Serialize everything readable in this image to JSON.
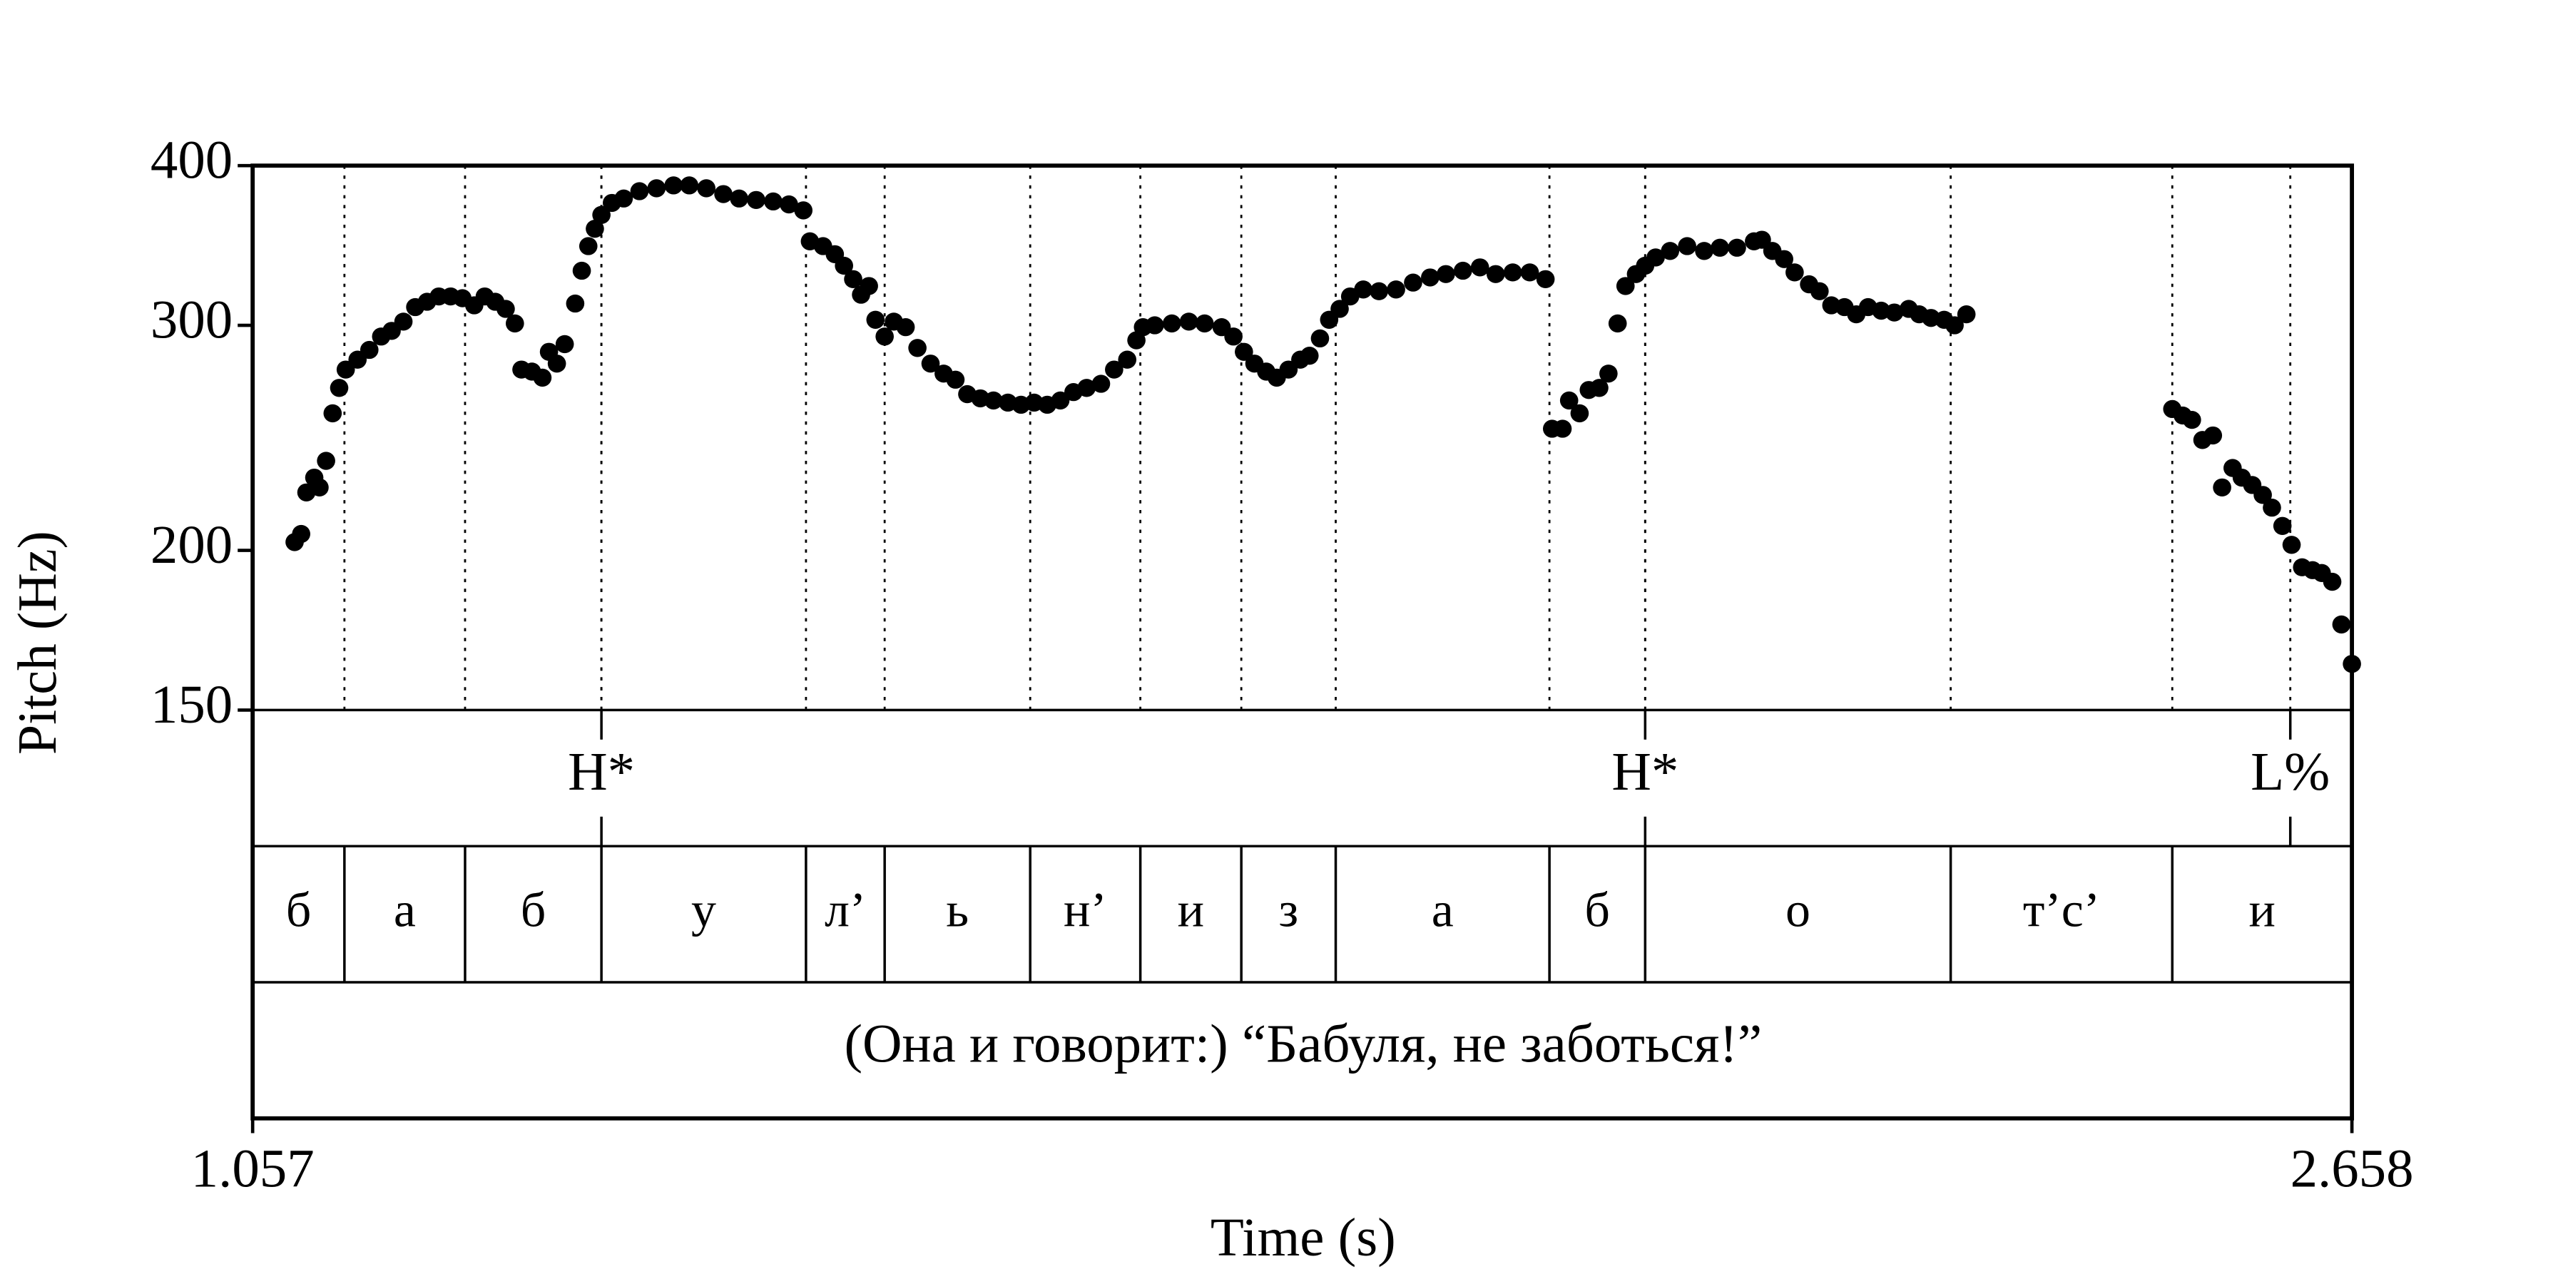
{
  "chart_data": {
    "type": "scatter",
    "xlabel": "Time (s)",
    "ylabel": "Pitch (Hz)",
    "xlim": [
      1.057,
      2.658
    ],
    "xticks": [
      1.057,
      2.658
    ],
    "ylim": [
      150,
      400
    ],
    "yticks": [
      150,
      200,
      300,
      400
    ],
    "ylog": true,
    "color": "#000000",
    "x": [
      1.089,
      1.094,
      1.098,
      1.104,
      1.108,
      1.113,
      1.118,
      1.123,
      1.128,
      1.137,
      1.146,
      1.155,
      1.163,
      1.172,
      1.181,
      1.19,
      1.199,
      1.208,
      1.217,
      1.226,
      1.234,
      1.242,
      1.25,
      1.257,
      1.262,
      1.27,
      1.278,
      1.283,
      1.289,
      1.295,
      1.303,
      1.308,
      1.313,
      1.318,
      1.323,
      1.331,
      1.34,
      1.352,
      1.365,
      1.378,
      1.39,
      1.403,
      1.416,
      1.428,
      1.441,
      1.454,
      1.466,
      1.477,
      1.482,
      1.492,
      1.501,
      1.508,
      1.515,
      1.521,
      1.527,
      1.532,
      1.539,
      1.546,
      1.555,
      1.564,
      1.574,
      1.584,
      1.593,
      1.602,
      1.612,
      1.622,
      1.633,
      1.643,
      1.653,
      1.663,
      1.673,
      1.683,
      1.693,
      1.704,
      1.714,
      1.724,
      1.731,
      1.736,
      1.745,
      1.758,
      1.771,
      1.783,
      1.796,
      1.805,
      1.813,
      1.821,
      1.83,
      1.838,
      1.847,
      1.856,
      1.863,
      1.871,
      1.878,
      1.886,
      1.894,
      1.904,
      1.916,
      1.929,
      1.942,
      1.955,
      1.967,
      1.98,
      1.993,
      2.005,
      2.018,
      2.031,
      2.043,
      2.048,
      2.056,
      2.061,
      2.069,
      2.076,
      2.084,
      2.091,
      2.098,
      2.104,
      2.112,
      2.119,
      2.127,
      2.138,
      2.151,
      2.164,
      2.176,
      2.189,
      2.202,
      2.208,
      2.216,
      2.225,
      2.233,
      2.244,
      2.252,
      2.261,
      2.271,
      2.28,
      2.289,
      2.299,
      2.309,
      2.32,
      2.328,
      2.337,
      2.347,
      2.355,
      2.364,
      2.521,
      2.529,
      2.536,
      2.544,
      2.552,
      2.559,
      2.567,
      2.574,
      2.582,
      2.59,
      2.597,
      2.605,
      2.612,
      2.62,
      2.628,
      2.635,
      2.643,
      2.65,
      2.658
    ],
    "values": [
      203,
      206,
      222,
      228,
      224,
      235,
      256,
      268,
      277,
      282,
      287,
      294,
      297,
      302,
      310,
      313,
      316,
      316,
      315,
      311,
      316,
      313,
      309,
      301,
      277,
      276,
      273,
      286,
      280,
      290,
      312,
      331,
      346,
      357,
      366,
      374,
      377,
      382,
      384,
      386,
      386,
      384,
      380,
      377,
      376,
      375,
      373,
      369,
      349,
      346,
      341,
      334,
      326,
      317,
      322,
      303,
      294,
      302,
      299,
      288,
      280,
      275,
      272,
      265,
      263,
      262,
      261,
      260,
      261,
      260,
      262,
      266,
      268,
      270,
      277,
      282,
      292,
      299,
      300,
      301,
      302,
      301,
      299,
      294,
      286,
      280,
      276,
      273,
      277,
      282,
      284,
      293,
      303,
      309,
      316,
      320,
      319,
      320,
      324,
      327,
      329,
      331,
      333,
      329,
      330,
      330,
      326,
      249,
      249,
      262,
      256,
      267,
      268,
      275,
      301,
      322,
      329,
      334,
      339,
      343,
      346,
      343,
      345,
      345,
      349,
      350,
      343,
      338,
      330,
      323,
      319,
      311,
      310,
      306,
      310,
      308,
      307,
      309,
      306,
      304,
      303,
      300,
      306,
      258,
      255,
      253,
      244,
      246,
      224,
      232,
      228,
      225,
      221,
      216,
      209,
      202,
      194,
      193,
      192,
      189,
      175,
      163
    ],
    "tones": {
      "times": [
        1.323,
        2.119,
        2.611
      ],
      "labels": [
        "H*",
        "H*",
        "L%"
      ]
    },
    "segments": {
      "boundaries": [
        1.127,
        1.219,
        1.323,
        1.479,
        1.539,
        1.65,
        1.734,
        1.811,
        1.883,
        2.046,
        2.119,
        2.352,
        2.521
      ],
      "labels": [
        "б",
        "а",
        "б",
        "у",
        "л’",
        "ь",
        "н’",
        "и",
        "з",
        "а",
        "б",
        "о",
        "т’с’",
        "и"
      ]
    },
    "sentence": "(Она и говорит:) “Бабуля, не заботься!”"
  }
}
